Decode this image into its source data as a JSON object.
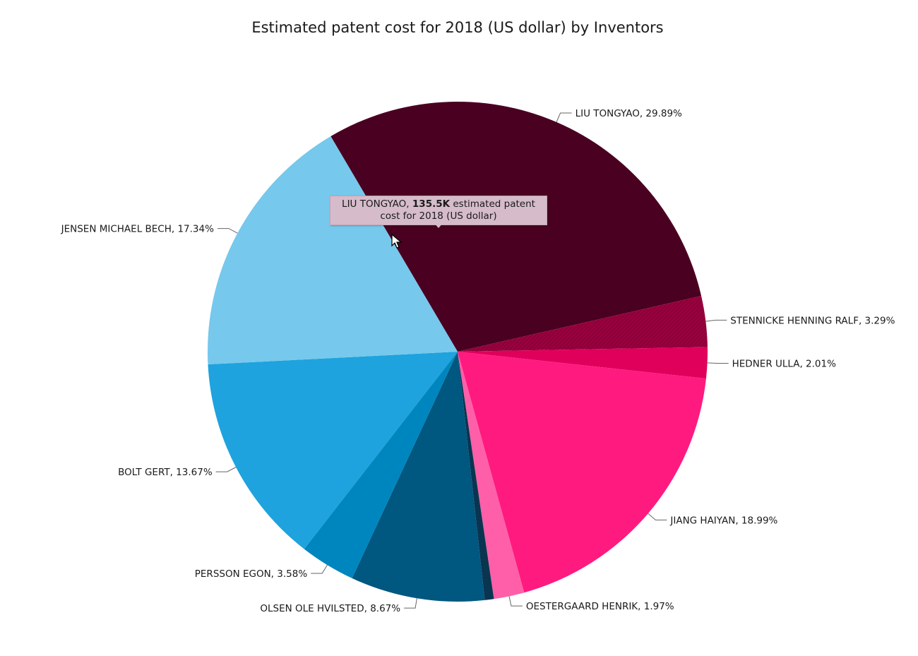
{
  "chart_data": {
    "type": "pie",
    "title": "Estimated patent cost for 2018 (US dollar) by Inventors",
    "slices": [
      {
        "label": "LIU TONGYAO",
        "percent": "29.89%",
        "value": 29.89,
        "color": "#4a0020"
      },
      {
        "label": "STENNICKE HENNING RALF",
        "percent": "3.29%",
        "value": 3.29,
        "color": "#9a003f",
        "pattern": true
      },
      {
        "label": "HEDNER ULLA",
        "percent": "2.01%",
        "value": 2.01,
        "color": "#e0005b"
      },
      {
        "label": "JIANG HAIYAN",
        "percent": "18.99%",
        "value": 18.99,
        "color": "#ff1a80"
      },
      {
        "label": "OESTERGAARD HENRIK",
        "percent": "1.97%",
        "value": 1.97,
        "color": "#ff5fa8"
      },
      {
        "label": "",
        "percent": "",
        "value": 0.59,
        "color": "#0a3550"
      },
      {
        "label": "OLSEN OLE HVILSTED",
        "percent": "8.67%",
        "value": 8.67,
        "color": "#005780"
      },
      {
        "label": "PERSSON EGON",
        "percent": "3.58%",
        "value": 3.58,
        "color": "#0086be"
      },
      {
        "label": "BOLT GERT",
        "percent": "13.67%",
        "value": 13.67,
        "color": "#1ea3de"
      },
      {
        "label": "JENSEN MICHAEL BECH",
        "percent": "17.34%",
        "value": 17.34,
        "color": "#76c8ec"
      }
    ]
  },
  "tooltip": {
    "name": "LIU TONGYAO,",
    "value": "135.5K",
    "text": "estimated patent cost for 2018 (US dollar)"
  }
}
